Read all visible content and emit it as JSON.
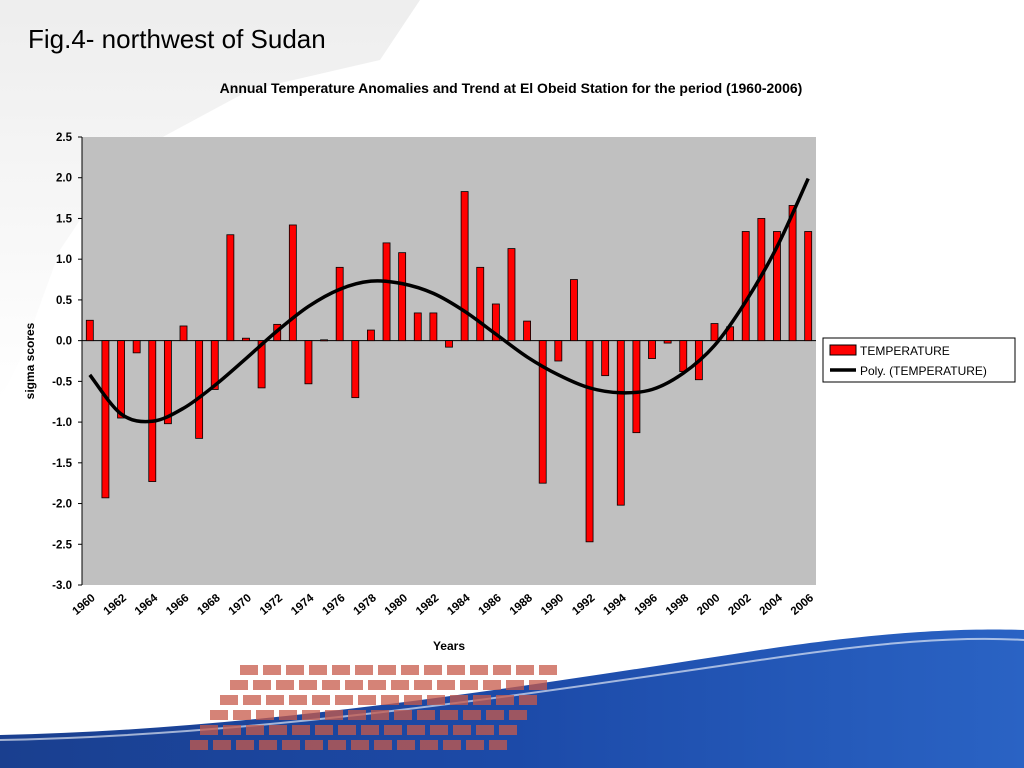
{
  "slide": {
    "title": "Fig.4- northwest of Sudan"
  },
  "colors": {
    "bar": "#ff0000",
    "bar_stroke": "#000000",
    "plot_bg": "#c0c0c0",
    "trend": "#000000"
  },
  "chart_data": {
    "type": "bar",
    "title": "Annual Temperature Anomalies and Trend at El Obeid  Station for the period (1960-2006)",
    "xlabel": "Years",
    "ylabel": "sigma scores",
    "ylim": [
      -3.0,
      2.5
    ],
    "yticks": [
      "2.5",
      "2.0",
      "1.5",
      "1.0",
      "0.5",
      "0.0",
      "-0.5",
      "-1.0",
      "-1.5",
      "-2.0",
      "-2.5",
      "-3.0"
    ],
    "ytick_values": [
      2.5,
      2.0,
      1.5,
      1.0,
      0.5,
      0.0,
      -0.5,
      -1.0,
      -1.5,
      -2.0,
      -2.5,
      -3.0
    ],
    "x": [
      1960,
      1961,
      1962,
      1963,
      1964,
      1965,
      1966,
      1967,
      1968,
      1969,
      1970,
      1971,
      1972,
      1973,
      1974,
      1975,
      1976,
      1977,
      1978,
      1979,
      1980,
      1981,
      1982,
      1983,
      1984,
      1985,
      1986,
      1987,
      1988,
      1989,
      1990,
      1991,
      1992,
      1993,
      1994,
      1995,
      1996,
      1997,
      1998,
      1999,
      2000,
      2001,
      2002,
      2003,
      2004,
      2005,
      2006
    ],
    "xtick_labels": [
      "1960",
      "1962",
      "1964",
      "1966",
      "1968",
      "1970",
      "1972",
      "1974",
      "1976",
      "1978",
      "1980",
      "1982",
      "1984",
      "1986",
      "1988",
      "1990",
      "1992",
      "1994",
      "1996",
      "1998",
      "2000",
      "2002",
      "2004",
      "2006"
    ],
    "series": [
      {
        "name": "TEMPERATURE",
        "values": [
          0.25,
          -1.93,
          -0.95,
          -0.15,
          -1.73,
          -1.02,
          0.18,
          -1.2,
          -0.6,
          1.3,
          0.03,
          -0.58,
          0.2,
          1.42,
          -0.53,
          0.01,
          0.9,
          -0.7,
          0.13,
          1.2,
          1.08,
          0.34,
          0.34,
          -0.08,
          1.83,
          0.9,
          0.45,
          1.13,
          0.24,
          -1.75,
          -0.25,
          0.75,
          -2.47,
          -0.43,
          -2.02,
          -1.13,
          -0.22,
          -0.03,
          -0.38,
          -0.48,
          0.21,
          0.17,
          1.34,
          1.5,
          1.34,
          1.66,
          1.34
        ]
      },
      {
        "name": "Poly. (TEMPERATURE)",
        "type": "line",
        "x": [
          1960,
          1962,
          1964,
          1966,
          1968,
          1970,
          1972,
          1974,
          1976,
          1978,
          1980,
          1982,
          1984,
          1986,
          1988,
          1990,
          1992,
          1994,
          1996,
          1998,
          2000,
          2002,
          2004,
          2006
        ],
        "values": [
          -0.42,
          -0.9,
          -0.99,
          -0.83,
          -0.55,
          -0.22,
          0.12,
          0.42,
          0.63,
          0.73,
          0.7,
          0.58,
          0.36,
          0.08,
          -0.2,
          -0.42,
          -0.58,
          -0.64,
          -0.6,
          -0.4,
          -0.06,
          0.48,
          1.15,
          1.99
        ]
      }
    ],
    "legend": {
      "placement": "right",
      "entries": [
        "TEMPERATURE",
        "Poly. (TEMPERATURE)"
      ]
    },
    "grid": false
  }
}
